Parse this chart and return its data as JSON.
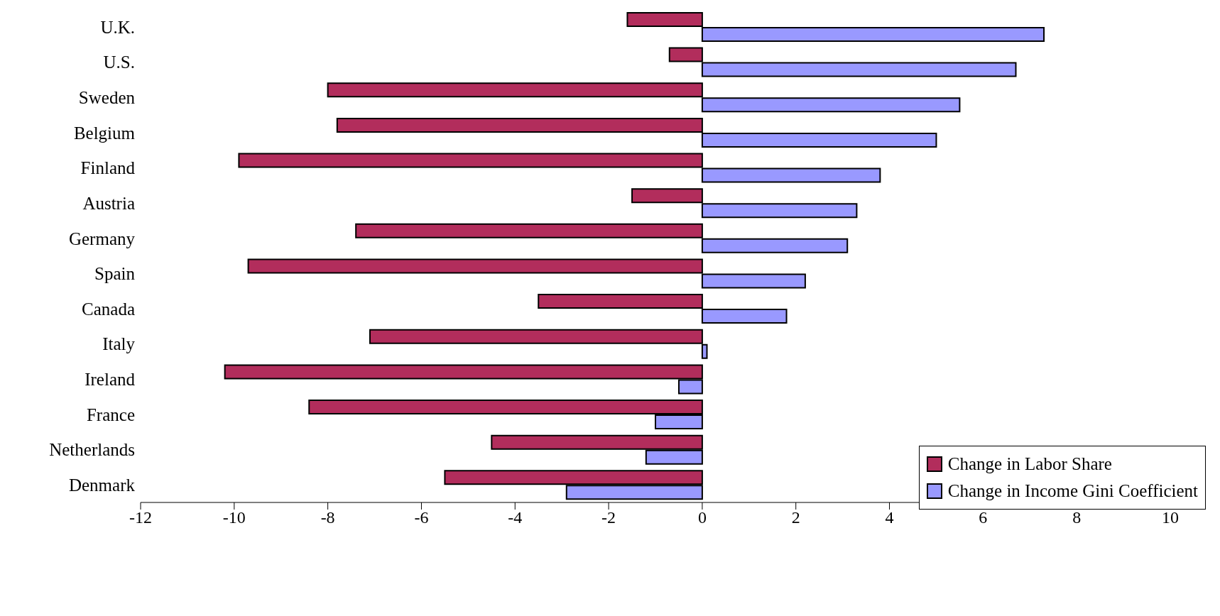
{
  "chart_data": {
    "type": "bar",
    "orientation": "horizontal",
    "categories": [
      "U.K.",
      "U.S.",
      "Sweden",
      "Belgium",
      "Finland",
      "Austria",
      "Germany",
      "Spain",
      "Canada",
      "Italy",
      "Ireland",
      "France",
      "Netherlands",
      "Denmark"
    ],
    "series": [
      {
        "name": "Change in Labor Share",
        "color": "#b22d5c",
        "values": [
          -1.6,
          -0.7,
          -8.0,
          -7.8,
          -9.9,
          -1.5,
          -7.4,
          -9.7,
          -3.5,
          -7.1,
          -10.2,
          -8.4,
          -4.5,
          -5.5
        ]
      },
      {
        "name": "Change in Income Gini Coefficient",
        "color": "#9999ff",
        "values": [
          7.3,
          6.7,
          5.5,
          5.0,
          3.8,
          3.3,
          3.1,
          2.2,
          1.8,
          0.1,
          -0.5,
          -1.0,
          -1.2,
          -2.9
        ]
      }
    ],
    "xlim": [
      -12,
      10
    ],
    "xticks": [
      -12,
      -10,
      -8,
      -6,
      -4,
      -2,
      0,
      2,
      4,
      6,
      8,
      10
    ],
    "grid": false,
    "legend": "bottom right"
  }
}
